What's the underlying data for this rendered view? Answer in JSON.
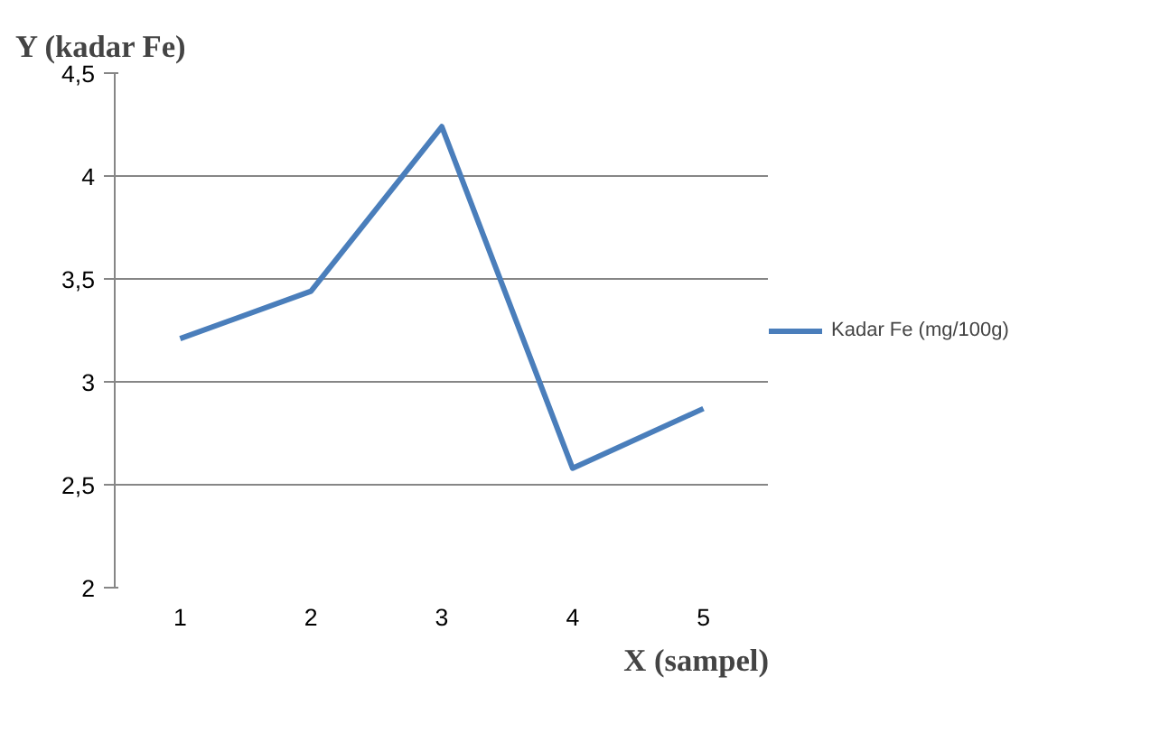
{
  "chart_data": {
    "type": "line",
    "ylabel": "Y (kadar Fe)",
    "xlabel": "X (sampel)",
    "categories": [
      "1",
      "2",
      "3",
      "4",
      "5"
    ],
    "series": [
      {
        "name": "Kadar Fe (mg/100g)",
        "color": "#4a7ebb",
        "values": [
          3.21,
          3.44,
          4.24,
          2.58,
          2.87
        ]
      }
    ],
    "ylim": [
      2,
      4.5
    ],
    "yticks": [
      2,
      {
        "value": 2.5,
        "label": "2,5"
      },
      3,
      {
        "value": 3.5,
        "label": "3,5"
      },
      4,
      {
        "value": 4.5,
        "label": "4,5"
      }
    ],
    "grid": "y",
    "legend": "right",
    "marker": "none",
    "line_style": "solid"
  }
}
